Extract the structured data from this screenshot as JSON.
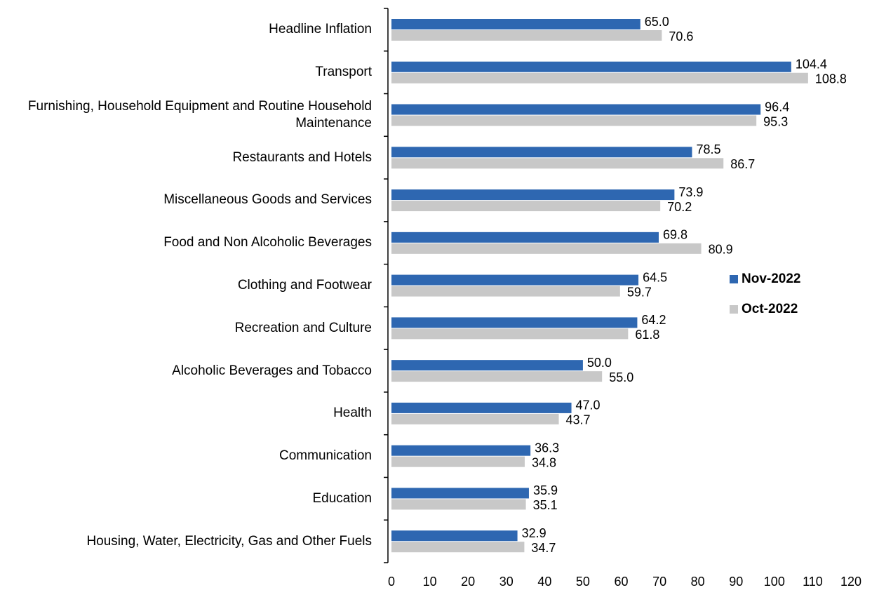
{
  "chart_data": {
    "type": "bar",
    "orientation": "horizontal",
    "categories": [
      "Headline Inflation",
      "Transport ",
      "Furnishing, Household Equipment and Routine Household Maintenance",
      "Restaurants and Hotels",
      "Miscellaneous Goods and Services ",
      "Food and Non Alcoholic Beverages",
      "Clothing and Footwear ",
      "Recreation and Culture ",
      "Alcoholic Beverages and Tobacco",
      "Health ",
      "Communication ",
      "Education ",
      "Housing, Water, Electricity, Gas and Other Fuels "
    ],
    "series": [
      {
        "name": "Nov-2022",
        "color": "#2e67b1",
        "values": [
          65.0,
          104.4,
          96.4,
          78.5,
          73.9,
          69.8,
          64.5,
          64.2,
          50.0,
          47.0,
          36.3,
          35.9,
          32.9
        ],
        "value_labels": [
          "65.0",
          "104.4",
          "96.4",
          "78.5",
          "73.9",
          "69.8",
          "64.5",
          "64.2",
          "50.0",
          "47.0",
          "36.3",
          "35.9",
          "32.9"
        ]
      },
      {
        "name": "Oct-2022",
        "color": "#c8c8c8",
        "values": [
          70.6,
          108.8,
          95.3,
          86.7,
          70.2,
          80.9,
          59.7,
          61.8,
          55.0,
          43.7,
          34.8,
          35.1,
          34.7
        ],
        "value_labels": [
          "70.6",
          "108.8",
          "95.3",
          "86.7",
          "70.2",
          "80.9",
          "59.7",
          "61.8",
          "55.0",
          "43.7",
          "34.8",
          "35.1",
          "34.7"
        ]
      }
    ],
    "xlim": [
      0,
      120
    ],
    "xticks": [
      0,
      10,
      20,
      30,
      40,
      50,
      60,
      70,
      80,
      90,
      100,
      110,
      120
    ],
    "grid": false,
    "legend": "right"
  }
}
